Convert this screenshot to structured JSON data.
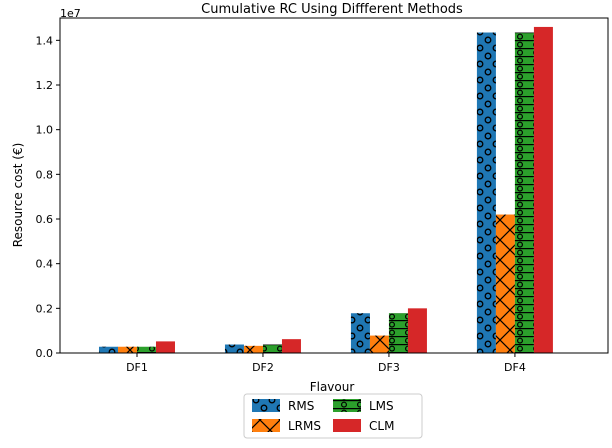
{
  "chart_data": {
    "type": "bar",
    "title": "Cumulative RC Using Diffferent Methods",
    "xlabel": "Flavour",
    "ylabel": "Resource cost (€)",
    "y_scale_label": "1e7",
    "categories": [
      "DF1",
      "DF2",
      "DF3",
      "DF4"
    ],
    "ylim": [
      0,
      15000000
    ],
    "yticks": [
      0,
      2000000,
      4000000,
      6000000,
      8000000,
      10000000,
      12000000,
      14000000
    ],
    "ytick_labels": [
      "0.0",
      "0.2",
      "0.4",
      "0.6",
      "0.8",
      "1.0",
      "1.2",
      "1.4"
    ],
    "grid": false,
    "legend_position": "bottom-center",
    "series": [
      {
        "name": "RMS",
        "color": "#1f77b4",
        "hatch": "circles",
        "values": [
          280000,
          380000,
          1780000,
          14350000
        ]
      },
      {
        "name": "LRMS",
        "color": "#ff7f0e",
        "hatch": "x",
        "values": [
          280000,
          320000,
          780000,
          6200000
        ]
      },
      {
        "name": "LMS",
        "color": "#2ca02c",
        "hatch": "circles-lines",
        "values": [
          280000,
          380000,
          1780000,
          14350000
        ]
      },
      {
        "name": "CLM",
        "color": "#d62728",
        "hatch": "none",
        "values": [
          520000,
          620000,
          2000000,
          14600000
        ]
      }
    ]
  }
}
